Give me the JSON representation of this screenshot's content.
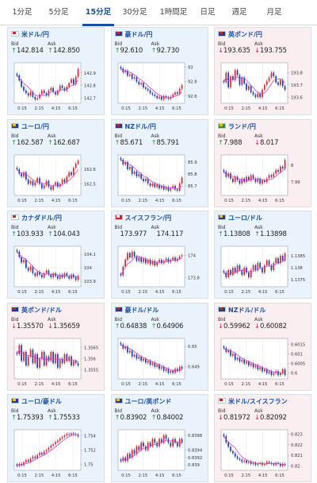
{
  "tabs": [
    {
      "label": "1分足",
      "active": false
    },
    {
      "label": "5分足",
      "active": false
    },
    {
      "label": "15分足",
      "active": true
    },
    {
      "label": "30分足",
      "active": false
    },
    {
      "label": "1時間足",
      "active": false
    },
    {
      "label": "日足",
      "active": false
    },
    {
      "label": "週足",
      "active": false
    },
    {
      "label": "月足",
      "active": false
    }
  ],
  "labels": {
    "bid": "Bid",
    "ask": "Ask"
  },
  "colors": {
    "up_card_bg": "#eaf3fb",
    "down_card_bg": "#fbeef0",
    "title_blue": "#1a4fa0",
    "candle_up": "#d8262f",
    "candle_down": "#1d3fa8",
    "moving_average": "#d23fd6",
    "arrow_up": "#2e8b35",
    "arrow_down": "#c0262d"
  },
  "cards": [
    {
      "title": "米ドル/円",
      "flag": "us-flag-icon",
      "trend": "up",
      "bid_dir": "up",
      "bid": "142.814",
      "ask_dir": "up",
      "ask": "142.850",
      "chart_data": {
        "type": "candlestick",
        "x_ticks": [
          "0:15",
          "2:15",
          "4:15",
          "6:15"
        ],
        "y_ticks": [
          "142.9",
          "142.8",
          "142.7"
        ],
        "y_tick_values": [
          142.9,
          142.8,
          142.7
        ],
        "ylim": [
          142.66,
          142.98
        ],
        "closes": [
          142.88,
          142.84,
          142.79,
          142.76,
          142.74,
          142.72,
          142.75,
          142.71,
          142.69,
          142.7,
          142.73,
          142.76,
          142.74,
          142.72,
          142.76,
          142.78,
          142.75,
          142.73,
          142.76,
          142.8,
          142.78,
          142.76,
          142.79,
          142.82,
          142.85,
          142.81,
          142.87,
          142.93
        ]
      }
    },
    {
      "title": "豪ドル/円",
      "flag": "au-flag-icon",
      "trend": "up",
      "bid_dir": "up",
      "bid": "92.610",
      "ask_dir": "up",
      "ask": "92.730",
      "chart_data": {
        "type": "candlestick",
        "x_ticks": [
          "0:15",
          "2:15",
          "4:15",
          "6:15"
        ],
        "y_ticks": [
          "93",
          "92.8",
          "92.6"
        ],
        "y_tick_values": [
          93.0,
          92.8,
          92.6
        ],
        "ylim": [
          92.5,
          93.06
        ],
        "closes": [
          92.98,
          92.93,
          92.95,
          92.88,
          92.9,
          92.84,
          92.86,
          92.8,
          92.76,
          92.78,
          92.72,
          92.7,
          92.68,
          92.64,
          92.62,
          92.6,
          92.57,
          92.59,
          92.55,
          92.6,
          92.58,
          92.56,
          92.59,
          92.62,
          92.65,
          92.63,
          92.7,
          92.75
        ]
      }
    },
    {
      "title": "英ポンド/円",
      "flag": "gb-flag-icon",
      "trend": "down",
      "bid_dir": "down",
      "bid": "193.635",
      "ask_dir": "down",
      "ask": "193.755",
      "chart_data": {
        "type": "candlestick",
        "x_ticks": [
          "0:15",
          "2:15",
          "4:15",
          "6:15"
        ],
        "y_ticks": [
          "193.8",
          "193.7",
          "193.6"
        ],
        "y_tick_values": [
          193.8,
          193.7,
          193.6
        ],
        "ylim": [
          193.55,
          193.88
        ],
        "closes": [
          193.72,
          193.8,
          193.68,
          193.77,
          193.74,
          193.82,
          193.78,
          193.7,
          193.76,
          193.71,
          193.66,
          193.69,
          193.64,
          193.62,
          193.6,
          193.63,
          193.6,
          193.66,
          193.7,
          193.73,
          193.76,
          193.8,
          193.77,
          193.72,
          193.7,
          193.74,
          193.69,
          193.66
        ]
      }
    },
    {
      "title": "ユーロ/円",
      "flag": "eu-flag-icon",
      "trend": "up",
      "bid_dir": "up",
      "bid": "162.587",
      "ask_dir": "up",
      "ask": "162.687",
      "chart_data": {
        "type": "candlestick",
        "x_ticks": [
          "0:15",
          "2:15",
          "4:15",
          "6:15"
        ],
        "y_ticks": [
          "162.6",
          "162.5"
        ],
        "y_tick_values": [
          162.6,
          162.5
        ],
        "ylim": [
          162.42,
          162.7
        ],
        "closes": [
          162.6,
          162.57,
          162.55,
          162.58,
          162.53,
          162.5,
          162.52,
          162.49,
          162.51,
          162.54,
          162.5,
          162.47,
          162.49,
          162.52,
          162.48,
          162.46,
          162.49,
          162.51,
          162.48,
          162.5,
          162.53,
          162.51,
          162.55,
          162.58,
          162.56,
          162.61,
          162.64,
          162.66
        ]
      }
    },
    {
      "title": "NZドル/円",
      "flag": "nz-flag-icon",
      "trend": "up",
      "bid_dir": "up",
      "bid": "85.671",
      "ask_dir": "up",
      "ask": "85.791",
      "chart_data": {
        "type": "candlestick",
        "x_ticks": [
          "0:15",
          "2:15",
          "4:15",
          "6:15"
        ],
        "y_ticks": [
          "85.9",
          "85.8",
          "85.7"
        ],
        "y_tick_values": [
          85.9,
          85.8,
          85.7
        ],
        "ylim": [
          85.62,
          85.96
        ],
        "closes": [
          85.92,
          85.88,
          85.9,
          85.84,
          85.86,
          85.8,
          85.82,
          85.78,
          85.8,
          85.76,
          85.74,
          85.76,
          85.72,
          85.7,
          85.72,
          85.69,
          85.71,
          85.68,
          85.7,
          85.67,
          85.69,
          85.66,
          85.68,
          85.7,
          85.67,
          85.66,
          85.72,
          85.77
        ]
      }
    },
    {
      "title": "ランド/円",
      "flag": "za-flag-icon",
      "trend": "down",
      "bid_dir": "up",
      "bid": "7.988",
      "ask_dir": "down",
      "ask": "8.017",
      "chart_data": {
        "type": "candlestick",
        "x_ticks": [
          "0:15",
          "2:15",
          "4:15",
          "6:15"
        ],
        "y_ticks": [
          "8",
          "7.99"
        ],
        "y_tick_values": [
          8.0,
          7.99
        ],
        "ylim": [
          7.982,
          8.006
        ],
        "closes": [
          7.996,
          7.993,
          7.995,
          7.992,
          7.99,
          7.993,
          7.991,
          7.989,
          7.992,
          7.99,
          7.993,
          7.991,
          7.994,
          7.992,
          7.99,
          7.992,
          7.989,
          7.991,
          7.99,
          7.992,
          7.994,
          7.993,
          7.995,
          7.997,
          7.996,
          7.999,
          7.998,
          8.003
        ]
      }
    },
    {
      "title": "カナダドル/円",
      "flag": "ca-flag-icon",
      "trend": "up",
      "bid_dir": "up",
      "bid": "103.933",
      "ask_dir": "up",
      "ask": "104.043",
      "chart_data": {
        "type": "candlestick",
        "x_ticks": [
          "0:15",
          "2:15",
          "4:15",
          "6:15"
        ],
        "y_ticks": [
          "104.1",
          "104",
          "103.9"
        ],
        "y_tick_values": [
          104.1,
          104.0,
          103.9
        ],
        "ylim": [
          103.86,
          104.16
        ],
        "closes": [
          104.12,
          104.08,
          104.04,
          104.06,
          104.0,
          103.98,
          104.01,
          103.96,
          103.94,
          103.97,
          103.95,
          103.93,
          103.96,
          103.98,
          103.95,
          103.93,
          103.96,
          103.94,
          103.92,
          103.95,
          103.93,
          103.96,
          103.94,
          103.92,
          103.95,
          103.93,
          103.91,
          103.94
        ]
      }
    },
    {
      "title": "スイスフラン/円",
      "flag": "ch-flag-icon",
      "trend": "up",
      "bid_dir": "",
      "bid": "173.977",
      "ask_dir": "",
      "ask": "174.117",
      "chart_data": {
        "type": "candlestick",
        "x_ticks": [
          "0:15",
          "2:15",
          "4:15",
          "6:15"
        ],
        "y_ticks": [
          "174",
          "173.8"
        ],
        "y_tick_values": [
          174.0,
          173.8
        ],
        "ylim": [
          173.72,
          174.08
        ],
        "closes": [
          173.82,
          173.9,
          173.96,
          174.02,
          173.98,
          174.03,
          173.99,
          173.95,
          173.98,
          173.94,
          173.97,
          173.93,
          173.96,
          173.92,
          173.95,
          173.91,
          173.94,
          173.96,
          173.93,
          173.95,
          173.97,
          173.94,
          173.96,
          173.98,
          173.95,
          173.97,
          173.99,
          174.0
        ]
      }
    },
    {
      "title": "ユーロ/ドル",
      "flag": "eu-flag-icon",
      "trend": "up",
      "bid_dir": "up",
      "bid": "1.13808",
      "ask_dir": "up",
      "ask": "1.13898",
      "chart_data": {
        "type": "candlestick",
        "x_ticks": [
          "0:15",
          "2:15",
          "4:15",
          "6:15"
        ],
        "y_ticks": [
          "1.1385",
          "1.138",
          "1.1375"
        ],
        "y_tick_values": [
          1.1385,
          1.138,
          1.1375
        ],
        "ylim": [
          1.1372,
          1.1389
        ],
        "closes": [
          1.1378,
          1.1376,
          1.1379,
          1.1377,
          1.138,
          1.1378,
          1.1381,
          1.1379,
          1.1377,
          1.138,
          1.1378,
          1.1376,
          1.1379,
          1.1381,
          1.1379,
          1.1382,
          1.138,
          1.1378,
          1.1381,
          1.1383,
          1.1381,
          1.1379,
          1.1382,
          1.1384,
          1.1382,
          1.1385,
          1.1383,
          1.1386
        ]
      }
    },
    {
      "title": "英ポンド/ドル",
      "flag": "gb-flag-icon",
      "trend": "down",
      "bid_dir": "down",
      "bid": "1.35570",
      "ask_dir": "down",
      "ask": "1.35659",
      "chart_data": {
        "type": "candlestick",
        "x_ticks": [
          "0:15",
          "2:15",
          "4:15",
          "6:15"
        ],
        "y_ticks": [
          "1.3565",
          "1.356",
          "1.3555"
        ],
        "y_tick_values": [
          1.3565,
          1.356,
          1.3555
        ],
        "ylim": [
          1.3551,
          1.3569
        ],
        "closes": [
          1.3562,
          1.3566,
          1.3559,
          1.3563,
          1.3557,
          1.3561,
          1.3564,
          1.3558,
          1.3562,
          1.3556,
          1.356,
          1.3563,
          1.3557,
          1.3561,
          1.3559,
          1.3563,
          1.3558,
          1.3562,
          1.3556,
          1.356,
          1.3558,
          1.3562,
          1.3559,
          1.3561,
          1.3557,
          1.3559,
          1.3558,
          1.3557
        ]
      }
    },
    {
      "title": "豪ドル/ドル",
      "flag": "au-flag-icon",
      "trend": "up",
      "bid_dir": "up",
      "bid": "0.64838",
      "ask_dir": "up",
      "ask": "0.64906",
      "chart_data": {
        "type": "candlestick",
        "x_ticks": [
          "0:15",
          "2:15",
          "4:15",
          "6:15"
        ],
        "y_ticks": [
          "0.65",
          "0.649"
        ],
        "y_tick_values": [
          0.65,
          0.649
        ],
        "ylim": [
          0.6484,
          0.6504
        ],
        "closes": [
          0.6501,
          0.6499,
          0.65,
          0.6497,
          0.6498,
          0.6495,
          0.6496,
          0.6494,
          0.6495,
          0.6493,
          0.6494,
          0.6492,
          0.6493,
          0.6491,
          0.6492,
          0.649,
          0.6491,
          0.6489,
          0.649,
          0.6488,
          0.6489,
          0.6487,
          0.6488,
          0.6487,
          0.6489,
          0.6488,
          0.649,
          0.6489
        ]
      }
    },
    {
      "title": "NZドル/ドル",
      "flag": "nz-flag-icon",
      "trend": "down",
      "bid_dir": "down",
      "bid": "0.59962",
      "ask_dir": "down",
      "ask": "0.60082",
      "chart_data": {
        "type": "candlestick",
        "x_ticks": [
          "0:15",
          "2:15",
          "4:15",
          "6:15"
        ],
        "y_ticks": [
          "0.6015",
          "0.601",
          "0.6005",
          "0.6"
        ],
        "y_tick_values": [
          0.6015,
          0.601,
          0.6005,
          0.6
        ],
        "ylim": [
          0.5997,
          0.6018
        ],
        "closes": [
          0.6013,
          0.6011,
          0.6012,
          0.6009,
          0.601,
          0.6007,
          0.6008,
          0.6006,
          0.6007,
          0.6005,
          0.6006,
          0.6004,
          0.6005,
          0.6003,
          0.6004,
          0.6002,
          0.6003,
          0.6001,
          0.6002,
          0.6,
          0.6001,
          0.5999,
          0.6,
          0.6001,
          0.5999,
          0.6,
          0.6002,
          0.5999
        ]
      }
    },
    {
      "title": "ユーロ/豪ドル",
      "flag": "eu-flag-icon",
      "trend": "up",
      "bid_dir": "up",
      "bid": "1.75393",
      "ask_dir": "up",
      "ask": "1.75533",
      "chart_data": {
        "type": "candlestick",
        "x_ticks": [
          "0:15",
          "2:15",
          "4:15",
          "6:15"
        ],
        "y_ticks": [
          "1.754",
          "1.752",
          "1.75"
        ],
        "y_tick_values": [
          1.754,
          1.752,
          1.75
        ],
        "ylim": [
          1.7492,
          1.7548
        ],
        "closes": [
          1.7498,
          1.7501,
          1.7499,
          1.7503,
          1.7506,
          1.7504,
          1.7508,
          1.7511,
          1.7509,
          1.7513,
          1.7516,
          1.7514,
          1.7518,
          1.752,
          1.7523,
          1.7526,
          1.7528,
          1.7531,
          1.7533,
          1.7536,
          1.7538,
          1.754,
          1.7542,
          1.7541,
          1.7543,
          1.7542,
          1.7541,
          1.7539
        ]
      }
    },
    {
      "title": "ユーロ/英ポンド",
      "flag": "eu-flag-icon",
      "trend": "up",
      "bid_dir": "up",
      "bid": "0.83902",
      "ask_dir": "up",
      "ask": "0.84002",
      "chart_data": {
        "type": "candlestick",
        "x_ticks": [
          "0:15",
          "2:15",
          "4:15",
          "6:15"
        ],
        "y_ticks": [
          "0.8398",
          "0.8394",
          "0.8392",
          "0.839"
        ],
        "y_tick_values": [
          0.8398,
          0.8394,
          0.8392,
          0.839
        ],
        "ylim": [
          0.83885,
          0.83995
        ],
        "closes": [
          0.8391,
          0.8392,
          0.8391,
          0.8393,
          0.8392,
          0.8394,
          0.8393,
          0.8395,
          0.8394,
          0.8396,
          0.8395,
          0.8394,
          0.8396,
          0.8395,
          0.8397,
          0.8396,
          0.8395,
          0.8397,
          0.8396,
          0.8398,
          0.8397,
          0.8396,
          0.8395,
          0.8397,
          0.8396,
          0.8395,
          0.8397,
          0.8396
        ]
      }
    },
    {
      "title": "米ドル/スイスフラン",
      "flag": "us-flag-icon",
      "trend": "down",
      "bid_dir": "down",
      "bid": "0.81972",
      "ask_dir": "down",
      "ask": "0.82092",
      "chart_data": {
        "type": "candlestick",
        "x_ticks": [
          "0:15",
          "2:15",
          "4:15",
          "6:15"
        ],
        "y_ticks": [
          "0.823",
          "0.822",
          "0.821",
          "0.82"
        ],
        "y_tick_values": [
          0.823,
          0.822,
          0.821,
          0.82
        ],
        "ylim": [
          0.8196,
          0.8234
        ],
        "closes": [
          0.8228,
          0.8222,
          0.8218,
          0.8214,
          0.8212,
          0.8209,
          0.8207,
          0.8206,
          0.8204,
          0.8205,
          0.8203,
          0.8204,
          0.8202,
          0.8203,
          0.8201,
          0.8202,
          0.8203,
          0.8201,
          0.8202,
          0.8204,
          0.8203,
          0.8202,
          0.8201,
          0.8203,
          0.8202,
          0.82,
          0.8202,
          0.8201
        ]
      }
    }
  ]
}
